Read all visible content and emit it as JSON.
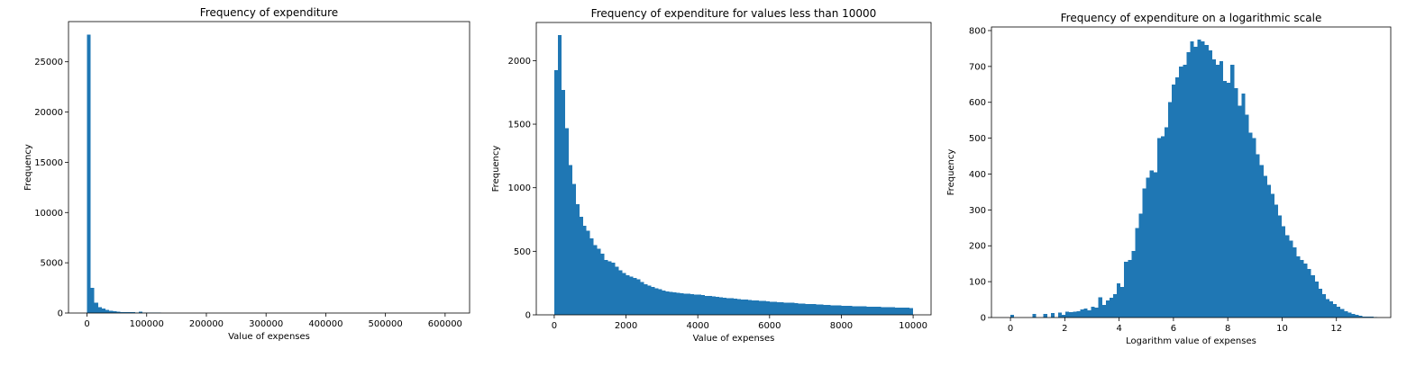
{
  "chart_data": [
    {
      "type": "bar",
      "title": "Frequency of expenditure",
      "xlabel": "Value of expenses",
      "ylabel": "Frequency",
      "color": "#1f77b4",
      "bin_width": 6200,
      "xlim": [
        -31000,
        641000
      ],
      "ylim": [
        0,
        29000
      ],
      "xticks": [
        0,
        100000,
        200000,
        300000,
        400000,
        500000,
        600000
      ],
      "yticks": [
        0,
        5000,
        10000,
        15000,
        20000,
        25000
      ],
      "bin_starts": [
        0,
        6200,
        12400,
        18600,
        24800,
        31000,
        37200,
        43400,
        49600,
        55800,
        62000,
        68200,
        74400,
        80600,
        86800,
        93000,
        99200,
        105400,
        111600,
        117800
      ],
      "values": [
        27700,
        2500,
        1050,
        600,
        430,
        300,
        220,
        180,
        140,
        110,
        90,
        80,
        70,
        60,
        150,
        50,
        45,
        40,
        35,
        30
      ]
    },
    {
      "type": "bar",
      "title": "Frequency of expenditure for values less than 10000",
      "xlabel": "Value of expenses",
      "ylabel": "Frequency",
      "color": "#1f77b4",
      "bin_width": 100,
      "xlim": [
        -500,
        10500
      ],
      "ylim": [
        0,
        2300
      ],
      "xticks": [
        0,
        2000,
        4000,
        6000,
        8000,
        10000
      ],
      "yticks": [
        0,
        500,
        1000,
        1500,
        2000
      ],
      "x_start": 0,
      "values": [
        1925,
        2200,
        1770,
        1470,
        1180,
        1030,
        870,
        770,
        700,
        660,
        600,
        550,
        520,
        480,
        430,
        420,
        410,
        380,
        350,
        330,
        310,
        300,
        290,
        280,
        260,
        240,
        230,
        220,
        210,
        200,
        190,
        185,
        180,
        178,
        175,
        170,
        168,
        165,
        162,
        160,
        158,
        155,
        150,
        148,
        145,
        140,
        138,
        135,
        132,
        130,
        128,
        125,
        122,
        120,
        118,
        115,
        112,
        110,
        108,
        106,
        104,
        102,
        100,
        98,
        96,
        95,
        94,
        92,
        90,
        88,
        86,
        85,
        84,
        82,
        80,
        79,
        78,
        76,
        75,
        74,
        72,
        71,
        70,
        69,
        68,
        67,
        66,
        65,
        64,
        63,
        62,
        61,
        60,
        60,
        59,
        58,
        57,
        56,
        55,
        54
      ]
    },
    {
      "type": "bar",
      "title": "Frequency of expenditure on a logarithmic scale",
      "xlabel": "Logarithm value of expenses",
      "ylabel": "Frequency",
      "color": "#1f77b4",
      "bin_width": 0.135,
      "xlim": [
        -0.7,
        14.0
      ],
      "ylim": [
        0,
        810
      ],
      "xticks": [
        0,
        2,
        4,
        6,
        8,
        10,
        12
      ],
      "yticks": [
        0,
        100,
        200,
        300,
        400,
        500,
        600,
        700,
        800
      ],
      "x_start": 0,
      "values": [
        8,
        0,
        0,
        0,
        0,
        0,
        10,
        0,
        0,
        10,
        0,
        12,
        0,
        14,
        8,
        16,
        15,
        16,
        18,
        22,
        25,
        20,
        30,
        27,
        57,
        35,
        48,
        55,
        65,
        95,
        85,
        155,
        160,
        185,
        250,
        290,
        360,
        390,
        410,
        405,
        500,
        505,
        530,
        600,
        650,
        670,
        700,
        705,
        740,
        770,
        755,
        775,
        770,
        760,
        745,
        720,
        705,
        715,
        660,
        655,
        705,
        640,
        590,
        625,
        565,
        515,
        500,
        455,
        425,
        395,
        370,
        345,
        315,
        285,
        255,
        230,
        215,
        195,
        170,
        160,
        150,
        135,
        118,
        100,
        80,
        65,
        52,
        45,
        38,
        30,
        24,
        18,
        14,
        10,
        8,
        5,
        3,
        2,
        3,
        1,
        0,
        0,
        0,
        0,
        0,
        0,
        0,
        0
      ]
    }
  ]
}
